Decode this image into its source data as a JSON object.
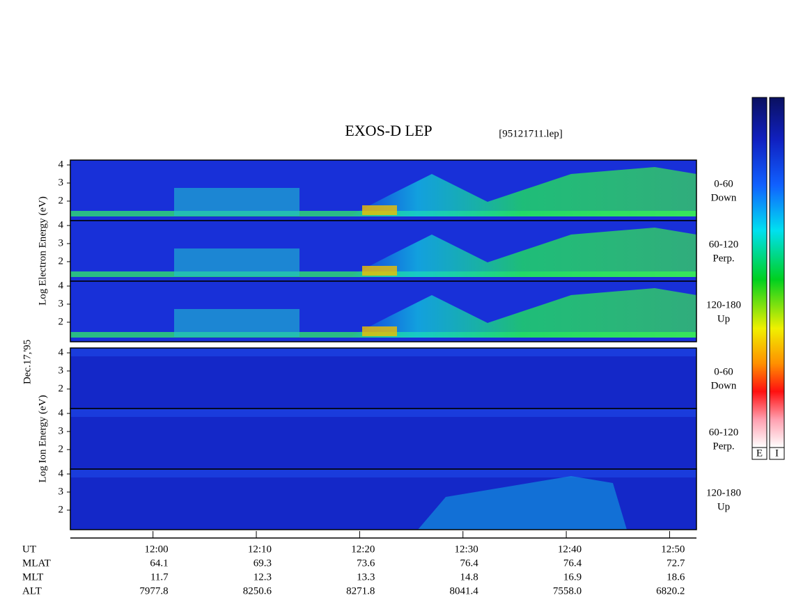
{
  "chart_data": {
    "type": "spectrogram",
    "title": "EXOS-D LEP",
    "subtitle": "[95121711.lep]",
    "date": "Dec.17,'95",
    "groups": [
      {
        "ylabel": "Log Electron Energy (eV)",
        "panels": [
          {
            "label": "0-60",
            "sublabel": "Down"
          },
          {
            "label": "60-120",
            "sublabel": "Perp."
          },
          {
            "label": "120-180",
            "sublabel": "Up"
          }
        ]
      },
      {
        "ylabel": "Log Ion Energy (eV)",
        "panels": [
          {
            "label": "0-60",
            "sublabel": "Down"
          },
          {
            "label": "60-120",
            "sublabel": "Perp."
          },
          {
            "label": "120-180",
            "sublabel": "Up"
          }
        ]
      }
    ],
    "ylim": [
      0.92,
      4.27
    ],
    "yticks": [
      2,
      3,
      4
    ],
    "xlim": [
      712,
      772.6
    ],
    "xticks": [
      {
        "value": 720,
        "label": "12:00"
      },
      {
        "value": 730,
        "label": "12:10"
      },
      {
        "value": 740,
        "label": "12:20"
      },
      {
        "value": 750,
        "label": "12:30"
      },
      {
        "value": 760,
        "label": "12:40"
      },
      {
        "value": 770,
        "label": "12:50"
      }
    ],
    "xlabel": "UT",
    "ephemeris": [
      {
        "name": "MLAT",
        "values": [
          64.1,
          69.3,
          73.6,
          76.4,
          76.4,
          72.7
        ]
      },
      {
        "name": "MLT",
        "values": [
          11.7,
          12.3,
          13.3,
          14.8,
          16.9,
          18.6
        ]
      },
      {
        "name": "ALT",
        "values": [
          7977.8,
          8250.6,
          8271.8,
          8041.4,
          {
            "value": 7558,
            "label": "7558.0"
          },
          6820.2
        ]
      }
    ],
    "colorbar_labels": [
      "E",
      "I"
    ]
  }
}
